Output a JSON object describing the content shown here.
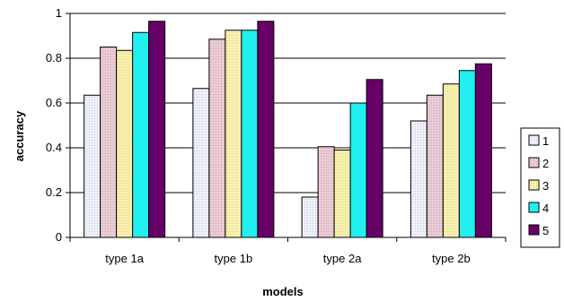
{
  "chart_data": {
    "type": "bar",
    "title": "",
    "xlabel": "models",
    "ylabel": "accuracy",
    "ylim": [
      0,
      1
    ],
    "yticks": [
      "0",
      "0.2",
      "0.4",
      "0.6",
      "0.8",
      "1"
    ],
    "categories": [
      "type 1a",
      "type 1b",
      "type 2a",
      "type 2b"
    ],
    "grid": "horizontal major gridlines",
    "legend_position": "right",
    "series": [
      {
        "name": "1",
        "color": "#E6E8F4",
        "values": [
          0.635,
          0.665,
          0.18,
          0.52
        ]
      },
      {
        "name": "2",
        "color": "#E3BCC8",
        "values": [
          0.85,
          0.885,
          0.405,
          0.635
        ]
      },
      {
        "name": "3",
        "color": "#F6EDA2",
        "values": [
          0.835,
          0.925,
          0.39,
          0.685
        ]
      },
      {
        "name": "4",
        "color": "#22EFEF",
        "values": [
          0.915,
          0.925,
          0.6,
          0.745
        ]
      },
      {
        "name": "5",
        "color": "#660066",
        "values": [
          0.965,
          0.965,
          0.705,
          0.775
        ]
      }
    ]
  }
}
